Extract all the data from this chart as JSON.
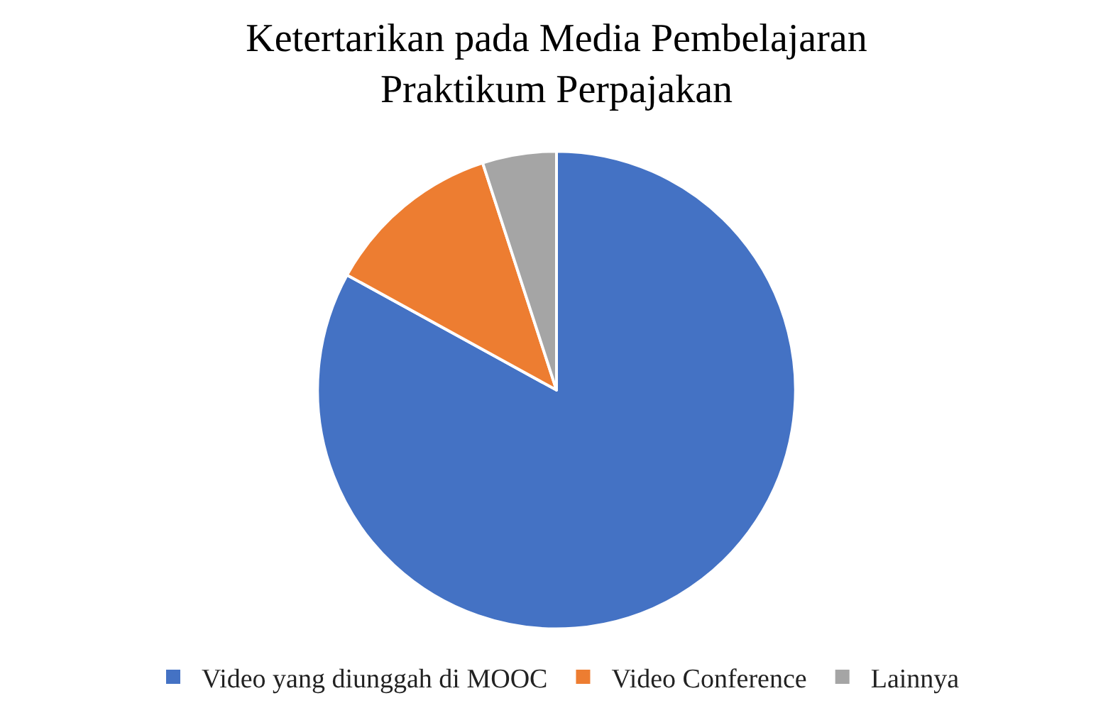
{
  "chart_data": {
    "type": "pie",
    "title": "Ketertarikan pada Media Pembelajaran Praktikum Perpajakan",
    "categories": [
      "Video yang diunggah di MOOC",
      "Video Conference",
      "Lainnya"
    ],
    "values": [
      83,
      12,
      5
    ],
    "colors": [
      "#4472c4",
      "#ed7d31",
      "#a5a5a5"
    ],
    "legend": "bottom"
  }
}
